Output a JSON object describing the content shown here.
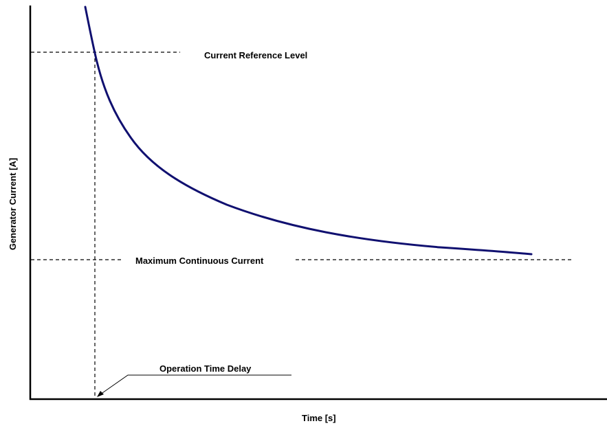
{
  "diagram": {
    "type": "inverse-time overcurrent characteristic",
    "colors": {
      "curve": "#101070",
      "axis": "#000000",
      "guide_lines": "#000000",
      "background": "#ffffff"
    },
    "axes": {
      "x_label": "Time [s]",
      "y_label": "Generator Current [A]"
    },
    "annotations": {
      "current_reference_level": "Current Reference Level",
      "maximum_continuous_current": "Maximum Continuous Current",
      "operation_time_delay": "Operation Time Delay"
    }
  }
}
